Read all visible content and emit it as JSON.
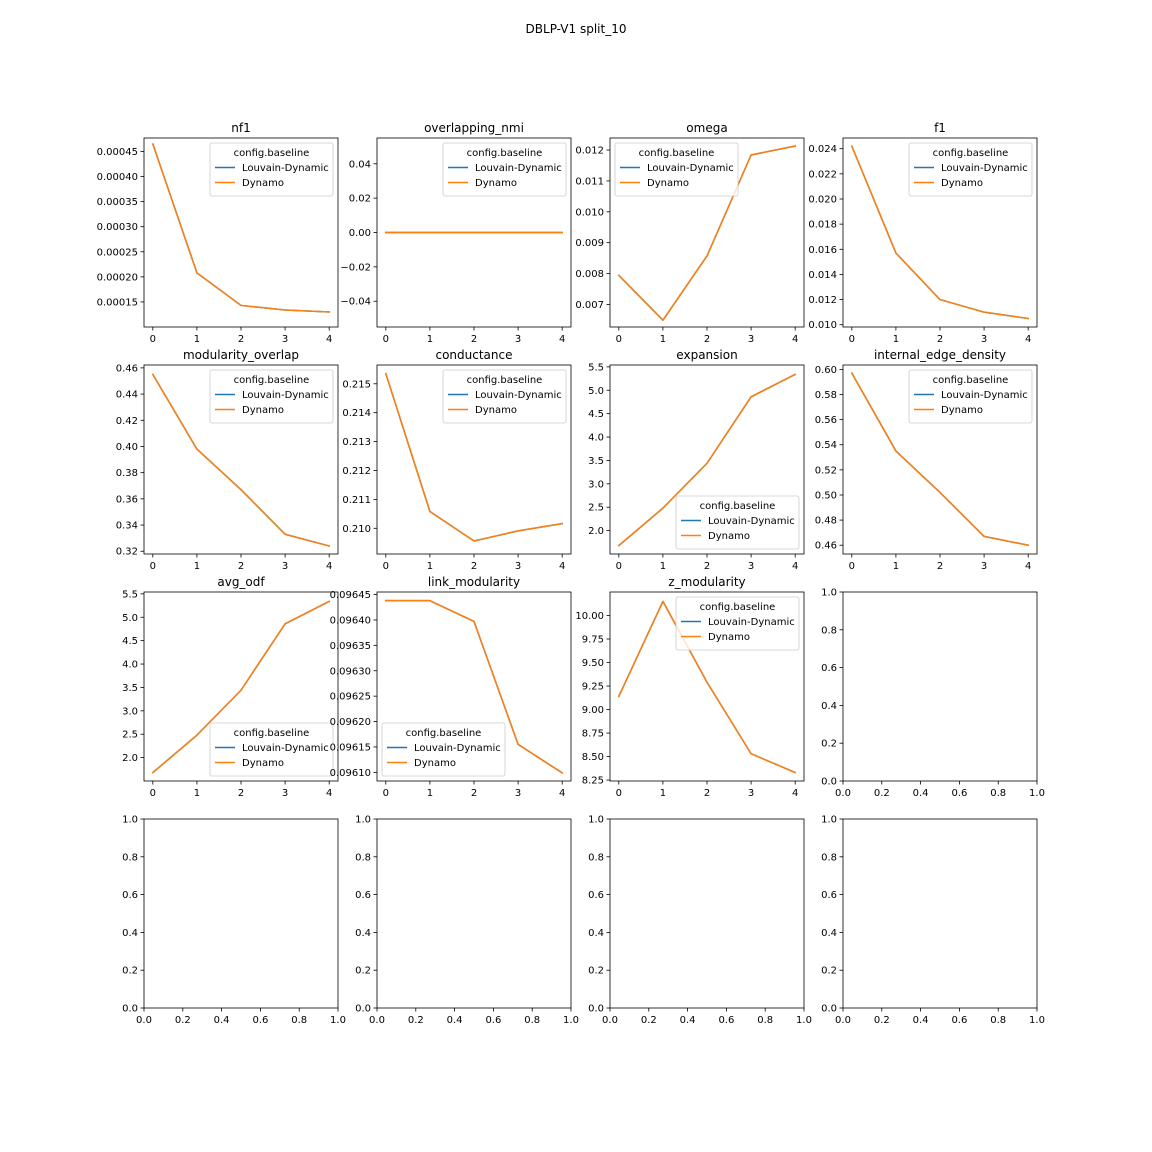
{
  "figure": {
    "title": "DBLP-V1 split_10"
  },
  "legend_title": "config.baseline",
  "colors": {
    "Louvain-Dynamic": "#1f77b4",
    "Dynamo": "#ff7f0e"
  },
  "chart_data": [
    {
      "type": "line",
      "title": "nf1",
      "x": [
        0,
        1,
        2,
        3,
        4
      ],
      "xlim": [
        -0.2,
        4.2
      ],
      "ylim": [
        0.0001,
        0.000477
      ],
      "xticks": [
        0,
        1,
        2,
        3,
        4
      ],
      "xtick_labels": [
        "0",
        "1",
        "2",
        "3",
        "4"
      ],
      "yticks": [
        0.00015,
        0.0002,
        0.00025,
        0.0003,
        0.00035,
        0.0004,
        0.00045
      ],
      "ytick_labels": [
        "0.00015",
        "0.00020",
        "0.00025",
        "0.00030",
        "0.00035",
        "0.00040",
        "0.00045"
      ],
      "legend": "upper right",
      "series": [
        {
          "name": "Louvain-Dynamic",
          "values": [
            0.000465,
            0.000208,
            0.000143,
            0.000134,
            0.00013
          ]
        },
        {
          "name": "Dynamo",
          "values": [
            0.000465,
            0.000208,
            0.000143,
            0.000134,
            0.00013
          ]
        }
      ]
    },
    {
      "type": "line",
      "title": "overlapping_nmi",
      "x": [
        0,
        1,
        2,
        3,
        4
      ],
      "xlim": [
        -0.2,
        4.2
      ],
      "ylim": [
        -0.055,
        0.055
      ],
      "xticks": [
        0,
        1,
        2,
        3,
        4
      ],
      "xtick_labels": [
        "0",
        "1",
        "2",
        "3",
        "4"
      ],
      "yticks": [
        -0.04,
        -0.02,
        0,
        0.02,
        0.04
      ],
      "ytick_labels": [
        "−0.04",
        "−0.02",
        "0.00",
        "0.02",
        "0.04"
      ],
      "legend": "upper right",
      "series": [
        {
          "name": "Louvain-Dynamic",
          "values": [
            0,
            0,
            0,
            0,
            0
          ]
        },
        {
          "name": "Dynamo",
          "values": [
            0,
            0,
            0,
            0,
            0
          ]
        }
      ]
    },
    {
      "type": "line",
      "title": "omega",
      "x": [
        0,
        1,
        2,
        3,
        4
      ],
      "xlim": [
        -0.2,
        4.2
      ],
      "ylim": [
        0.00627,
        0.01239
      ],
      "xticks": [
        0,
        1,
        2,
        3,
        4
      ],
      "xtick_labels": [
        "0",
        "1",
        "2",
        "3",
        "4"
      ],
      "yticks": [
        0.007,
        0.008,
        0.009,
        0.01,
        0.011,
        0.012
      ],
      "ytick_labels": [
        "0.007",
        "0.008",
        "0.009",
        "0.010",
        "0.011",
        "0.012"
      ],
      "legend": "upper left",
      "series": [
        {
          "name": "Louvain-Dynamic",
          "values": [
            0.00794,
            0.00649,
            0.00857,
            0.01184,
            0.01213
          ]
        },
        {
          "name": "Dynamo",
          "values": [
            0.00794,
            0.00649,
            0.00857,
            0.01184,
            0.01213
          ]
        }
      ]
    },
    {
      "type": "line",
      "title": "f1",
      "x": [
        0,
        1,
        2,
        3,
        4
      ],
      "xlim": [
        -0.2,
        4.2
      ],
      "ylim": [
        0.00982,
        0.02485
      ],
      "xticks": [
        0,
        1,
        2,
        3,
        4
      ],
      "xtick_labels": [
        "0",
        "1",
        "2",
        "3",
        "4"
      ],
      "yticks": [
        0.01,
        0.012,
        0.014,
        0.016,
        0.018,
        0.02,
        0.022,
        0.024
      ],
      "ytick_labels": [
        "0.010",
        "0.012",
        "0.014",
        "0.016",
        "0.018",
        "0.020",
        "0.022",
        "0.024"
      ],
      "legend": "upper right",
      "series": [
        {
          "name": "Louvain-Dynamic",
          "values": [
            0.0242,
            0.0157,
            0.012,
            0.011,
            0.0105
          ]
        },
        {
          "name": "Dynamo",
          "values": [
            0.0242,
            0.0157,
            0.012,
            0.011,
            0.0105
          ]
        }
      ]
    },
    {
      "type": "line",
      "title": "modularity_overlap",
      "x": [
        0,
        1,
        2,
        3,
        4
      ],
      "xlim": [
        -0.2,
        4.2
      ],
      "ylim": [
        0.3179,
        0.4622
      ],
      "xticks": [
        0,
        1,
        2,
        3,
        4
      ],
      "xtick_labels": [
        "0",
        "1",
        "2",
        "3",
        "4"
      ],
      "yticks": [
        0.32,
        0.34,
        0.36,
        0.38,
        0.4,
        0.42,
        0.44,
        0.46
      ],
      "ytick_labels": [
        "0.32",
        "0.34",
        "0.36",
        "0.38",
        "0.40",
        "0.42",
        "0.44",
        "0.46"
      ],
      "legend": "upper right",
      "series": [
        {
          "name": "Louvain-Dynamic",
          "values": [
            0.455,
            0.398,
            0.367,
            0.333,
            0.324
          ]
        },
        {
          "name": "Dynamo",
          "values": [
            0.455,
            0.398,
            0.367,
            0.333,
            0.324
          ]
        }
      ]
    },
    {
      "type": "line",
      "title": "conductance",
      "x": [
        0,
        1,
        2,
        3,
        4
      ],
      "xlim": [
        -0.2,
        4.2
      ],
      "ylim": [
        0.20911,
        0.21565
      ],
      "xticks": [
        0,
        1,
        2,
        3,
        4
      ],
      "xtick_labels": [
        "0",
        "1",
        "2",
        "3",
        "4"
      ],
      "yticks": [
        0.21,
        0.211,
        0.212,
        0.213,
        0.214,
        0.215
      ],
      "ytick_labels": [
        "0.210",
        "0.211",
        "0.212",
        "0.213",
        "0.214",
        "0.215"
      ],
      "legend": "upper right",
      "series": [
        {
          "name": "Louvain-Dynamic",
          "values": [
            0.21535,
            0.21058,
            0.20956,
            0.20991,
            0.21016
          ]
        },
        {
          "name": "Dynamo",
          "values": [
            0.21535,
            0.21058,
            0.20956,
            0.20991,
            0.21016
          ]
        }
      ]
    },
    {
      "type": "line",
      "title": "expansion",
      "x": [
        0,
        1,
        2,
        3,
        4
      ],
      "xlim": [
        -0.2,
        4.2
      ],
      "ylim": [
        1.5,
        5.54
      ],
      "xticks": [
        0,
        1,
        2,
        3,
        4
      ],
      "xtick_labels": [
        "0",
        "1",
        "2",
        "3",
        "4"
      ],
      "yticks": [
        2,
        2.5,
        3,
        3.5,
        4,
        4.5,
        5,
        5.5
      ],
      "ytick_labels": [
        "2.0",
        "2.5",
        "3.0",
        "3.5",
        "4.0",
        "4.5",
        "5.0",
        "5.5"
      ],
      "legend": "lower right",
      "series": [
        {
          "name": "Louvain-Dynamic",
          "values": [
            1.68,
            2.48,
            3.44,
            4.86,
            5.34
          ]
        },
        {
          "name": "Dynamo",
          "values": [
            1.68,
            2.48,
            3.44,
            4.86,
            5.34
          ]
        }
      ]
    },
    {
      "type": "line",
      "title": "internal_edge_density",
      "x": [
        0,
        1,
        2,
        3,
        4
      ],
      "xlim": [
        -0.2,
        4.2
      ],
      "ylim": [
        0.453,
        0.6035
      ],
      "xticks": [
        0,
        1,
        2,
        3,
        4
      ],
      "xtick_labels": [
        "0",
        "1",
        "2",
        "3",
        "4"
      ],
      "yticks": [
        0.46,
        0.48,
        0.5,
        0.52,
        0.54,
        0.56,
        0.58,
        0.6
      ],
      "ytick_labels": [
        "0.46",
        "0.48",
        "0.50",
        "0.52",
        "0.54",
        "0.56",
        "0.58",
        "0.60"
      ],
      "legend": "upper right",
      "series": [
        {
          "name": "Louvain-Dynamic",
          "values": [
            0.597,
            0.535,
            0.502,
            0.467,
            0.46
          ]
        },
        {
          "name": "Dynamo",
          "values": [
            0.597,
            0.535,
            0.502,
            0.467,
            0.46
          ]
        }
      ]
    },
    {
      "type": "line",
      "title": "avg_odf",
      "x": [
        0,
        1,
        2,
        3,
        4
      ],
      "xlim": [
        -0.2,
        4.2
      ],
      "ylim": [
        1.5,
        5.54
      ],
      "xticks": [
        0,
        1,
        2,
        3,
        4
      ],
      "xtick_labels": [
        "0",
        "1",
        "2",
        "3",
        "4"
      ],
      "yticks": [
        2,
        2.5,
        3,
        3.5,
        4,
        4.5,
        5,
        5.5
      ],
      "ytick_labels": [
        "2.0",
        "2.5",
        "3.0",
        "3.5",
        "4.0",
        "4.5",
        "5.0",
        "5.5"
      ],
      "legend": "lower right",
      "series": [
        {
          "name": "Louvain-Dynamic",
          "values": [
            1.68,
            2.48,
            3.44,
            4.86,
            5.34
          ]
        },
        {
          "name": "Dynamo",
          "values": [
            1.68,
            2.48,
            3.44,
            4.86,
            5.34
          ]
        }
      ]
    },
    {
      "type": "line",
      "title": "link_modularity",
      "x": [
        0,
        1,
        2,
        3,
        4
      ],
      "xlim": [
        -0.2,
        4.2
      ],
      "ylim": [
        0.096083,
        0.096455
      ],
      "xticks": [
        0,
        1,
        2,
        3,
        4
      ],
      "xtick_labels": [
        "0",
        "1",
        "2",
        "3",
        "4"
      ],
      "yticks": [
        0.0961,
        0.09615,
        0.0962,
        0.09625,
        0.0963,
        0.09635,
        0.0964,
        0.09645
      ],
      "ytick_labels": [
        "0.09610",
        "0.09615",
        "0.09620",
        "0.09625",
        "0.09630",
        "0.09635",
        "0.09640",
        "0.09645"
      ],
      "legend": "lower left",
      "series": [
        {
          "name": "Louvain-Dynamic",
          "values": [
            0.096438,
            0.096438,
            0.096397,
            0.096155,
            0.096099
          ]
        },
        {
          "name": "Dynamo",
          "values": [
            0.096438,
            0.096438,
            0.096397,
            0.096155,
            0.096099
          ]
        }
      ]
    },
    {
      "type": "line",
      "title": "z_modularity",
      "x": [
        0,
        1,
        2,
        3,
        4
      ],
      "xlim": [
        -0.2,
        4.2
      ],
      "ylim": [
        8.24,
        10.25
      ],
      "xticks": [
        0,
        1,
        2,
        3,
        4
      ],
      "xtick_labels": [
        "0",
        "1",
        "2",
        "3",
        "4"
      ],
      "yticks": [
        8.25,
        8.5,
        8.75,
        9,
        9.25,
        9.5,
        9.75,
        10
      ],
      "ytick_labels": [
        "8.25",
        "8.50",
        "8.75",
        "9.00",
        "9.25",
        "9.50",
        "9.75",
        "10.00"
      ],
      "legend": "upper right",
      "series": [
        {
          "name": "Louvain-Dynamic",
          "values": [
            9.14,
            10.15,
            9.29,
            8.53,
            8.33
          ]
        },
        {
          "name": "Dynamo",
          "values": [
            9.14,
            10.15,
            9.29,
            8.53,
            8.33
          ]
        }
      ]
    },
    {
      "type": "line",
      "title": "",
      "x": [],
      "xlim": [
        0,
        1
      ],
      "ylim": [
        0,
        1
      ],
      "xticks": [
        0,
        0.2,
        0.4,
        0.6,
        0.8,
        1
      ],
      "xtick_labels": [
        "0.0",
        "0.2",
        "0.4",
        "0.6",
        "0.8",
        "1.0"
      ],
      "yticks": [
        0,
        0.2,
        0.4,
        0.6,
        0.8,
        1
      ],
      "ytick_labels": [
        "0.0",
        "0.2",
        "0.4",
        "0.6",
        "0.8",
        "1.0"
      ],
      "legend": "none",
      "series": []
    },
    {
      "type": "line",
      "title": "",
      "x": [],
      "xlim": [
        0,
        1
      ],
      "ylim": [
        0,
        1
      ],
      "xticks": [
        0,
        0.2,
        0.4,
        0.6,
        0.8,
        1
      ],
      "xtick_labels": [
        "0.0",
        "0.2",
        "0.4",
        "0.6",
        "0.8",
        "1.0"
      ],
      "yticks": [
        0,
        0.2,
        0.4,
        0.6,
        0.8,
        1
      ],
      "ytick_labels": [
        "0.0",
        "0.2",
        "0.4",
        "0.6",
        "0.8",
        "1.0"
      ],
      "legend": "none",
      "series": []
    },
    {
      "type": "line",
      "title": "",
      "x": [],
      "xlim": [
        0,
        1
      ],
      "ylim": [
        0,
        1
      ],
      "xticks": [
        0,
        0.2,
        0.4,
        0.6,
        0.8,
        1
      ],
      "xtick_labels": [
        "0.0",
        "0.2",
        "0.4",
        "0.6",
        "0.8",
        "1.0"
      ],
      "yticks": [
        0,
        0.2,
        0.4,
        0.6,
        0.8,
        1
      ],
      "ytick_labels": [
        "0.0",
        "0.2",
        "0.4",
        "0.6",
        "0.8",
        "1.0"
      ],
      "legend": "none",
      "series": []
    },
    {
      "type": "line",
      "title": "",
      "x": [],
      "xlim": [
        0,
        1
      ],
      "ylim": [
        0,
        1
      ],
      "xticks": [
        0,
        0.2,
        0.4,
        0.6,
        0.8,
        1
      ],
      "xtick_labels": [
        "0.0",
        "0.2",
        "0.4",
        "0.6",
        "0.8",
        "1.0"
      ],
      "yticks": [
        0,
        0.2,
        0.4,
        0.6,
        0.8,
        1
      ],
      "ytick_labels": [
        "0.0",
        "0.2",
        "0.4",
        "0.6",
        "0.8",
        "1.0"
      ],
      "legend": "none",
      "series": []
    },
    {
      "type": "line",
      "title": "",
      "x": [],
      "xlim": [
        0,
        1
      ],
      "ylim": [
        0,
        1
      ],
      "xticks": [
        0,
        0.2,
        0.4,
        0.6,
        0.8,
        1
      ],
      "xtick_labels": [
        "0.0",
        "0.2",
        "0.4",
        "0.6",
        "0.8",
        "1.0"
      ],
      "yticks": [
        0,
        0.2,
        0.4,
        0.6,
        0.8,
        1
      ],
      "ytick_labels": [
        "0.0",
        "0.2",
        "0.4",
        "0.6",
        "0.8",
        "1.0"
      ],
      "legend": "none",
      "series": []
    }
  ]
}
